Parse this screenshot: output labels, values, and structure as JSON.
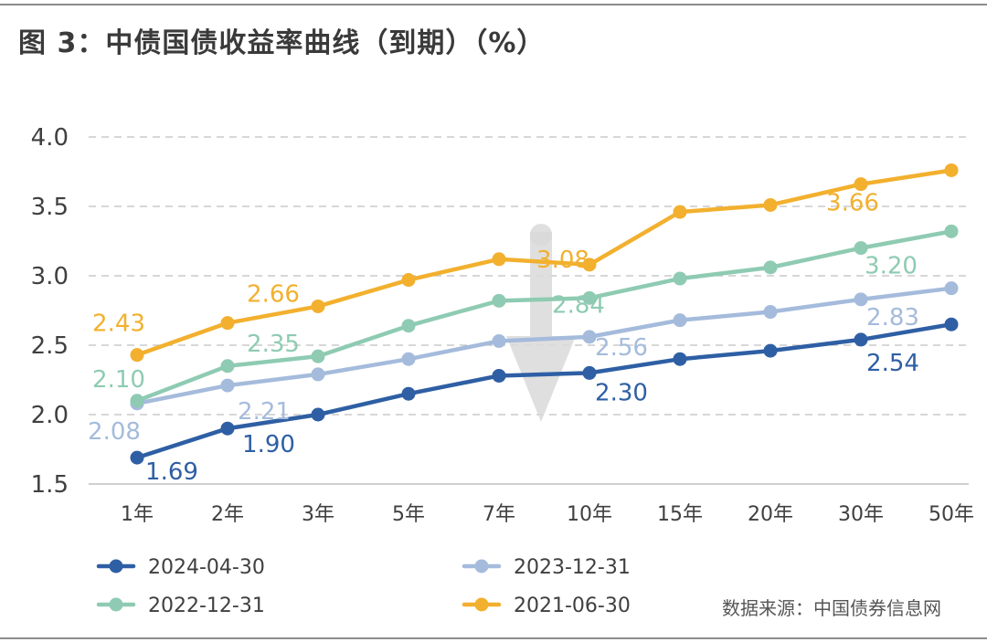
{
  "title": "图 3：中债国债收益率曲线（到期）（%）",
  "source": "数据来源：中国债券信息网",
  "chart_data": {
    "type": "line",
    "categories": [
      "1年",
      "2年",
      "3年",
      "5年",
      "7年",
      "10年",
      "15年",
      "20年",
      "30年",
      "50年"
    ],
    "ylim": [
      1.5,
      4.0
    ],
    "yticks": [
      "1.5",
      "2.0",
      "2.5",
      "3.0",
      "3.5",
      "4.0"
    ],
    "grid": true,
    "legend_position": "bottom",
    "series": [
      {
        "name": "2024-04-30",
        "color": "#2e5fa4",
        "values": [
          1.69,
          1.9,
          2.0,
          2.15,
          2.28,
          2.3,
          2.4,
          2.46,
          2.54,
          2.65
        ],
        "labels": {
          "0": "1.69",
          "1": "1.90",
          "5": "2.30",
          "8": "2.54"
        }
      },
      {
        "name": "2023-12-31",
        "color": "#a5bbdc",
        "values": [
          2.08,
          2.21,
          2.29,
          2.4,
          2.53,
          2.56,
          2.68,
          2.74,
          2.83,
          2.91
        ],
        "labels": {
          "0": "2.08",
          "1": "2.21",
          "5": "2.56",
          "8": "2.83"
        }
      },
      {
        "name": "2022-12-31",
        "color": "#8ecbb2",
        "values": [
          2.1,
          2.35,
          2.42,
          2.64,
          2.82,
          2.84,
          2.98,
          3.06,
          3.2,
          3.32
        ],
        "labels": {
          "0": "2.10",
          "1": "2.35",
          "5": "2.84",
          "8": "3.20"
        }
      },
      {
        "name": "2021-06-30",
        "color": "#f2b02e",
        "values": [
          2.43,
          2.66,
          2.78,
          2.97,
          3.12,
          3.08,
          3.46,
          3.51,
          3.66,
          3.76
        ],
        "labels": {
          "0": "2.43",
          "1": "2.66",
          "5": "3.08",
          "8": "3.66"
        }
      }
    ]
  }
}
